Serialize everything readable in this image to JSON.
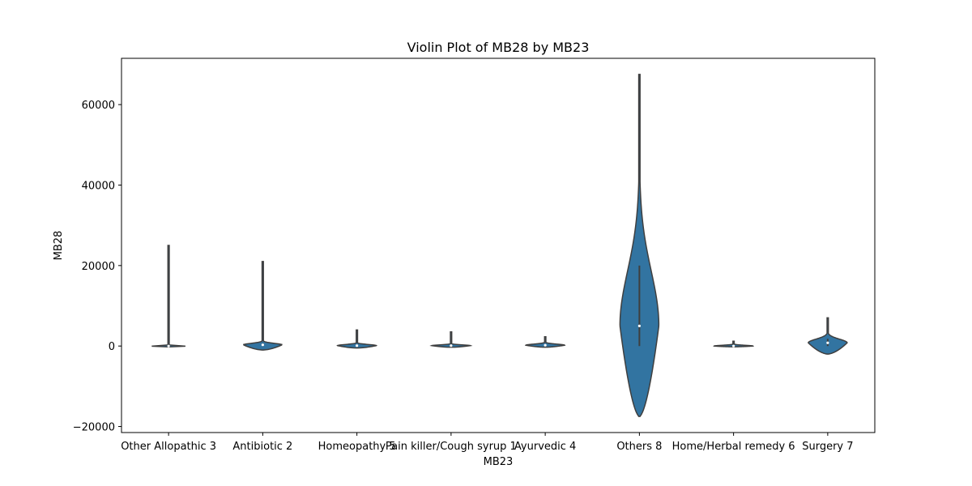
{
  "chart_data": {
    "type": "violin",
    "title": "Violin Plot of MB28 by MB23",
    "xlabel": "MB23",
    "ylabel": "MB28",
    "ylim": [
      -21500,
      71500
    ],
    "yticks": [
      -20000,
      0,
      20000,
      40000,
      60000
    ],
    "ytick_labels": [
      "−20000",
      "0",
      "20000",
      "40000",
      "60000"
    ],
    "grid": false,
    "legend": "none",
    "categories": [
      "Other Allopathic 3",
      "Antibiotic 2",
      "Homeopathy 5",
      "Pain killer/Cough syrup 1",
      "Ayurvedic 4",
      "Others 8",
      "Home/Herbal remedy 6",
      "Surgery 7"
    ],
    "series": [
      {
        "category": "Other Allopathic 3",
        "min": -200,
        "q1": -100,
        "median": 0,
        "q3": 100,
        "max": 25000
      },
      {
        "category": "Antibiotic 2",
        "min": -1000,
        "q1": 0,
        "median": 300,
        "q3": 700,
        "max": 21000
      },
      {
        "category": "Homeopathy 5",
        "min": -500,
        "q1": -100,
        "median": 100,
        "q3": 400,
        "max": 4000
      },
      {
        "category": "Pain killer/Cough syrup 1",
        "min": -300,
        "q1": -100,
        "median": 100,
        "q3": 300,
        "max": 3500
      },
      {
        "category": "Ayurvedic 4",
        "min": -300,
        "q1": 0,
        "median": 200,
        "q3": 500,
        "max": 2300
      },
      {
        "category": "Others 8",
        "min": -17500,
        "q1": 0,
        "median": 5000,
        "q3": 20000,
        "max": 67500
      },
      {
        "category": "Home/Herbal remedy 6",
        "min": -200,
        "q1": -100,
        "median": 0,
        "q3": 200,
        "max": 1200
      },
      {
        "category": "Surgery 7",
        "min": -2000,
        "q1": 0,
        "median": 800,
        "q3": 1800,
        "max": 7000
      }
    ],
    "colors": {
      "fill": "#3274a1",
      "edge": "#3f3f3f",
      "axis": "#000000"
    }
  }
}
